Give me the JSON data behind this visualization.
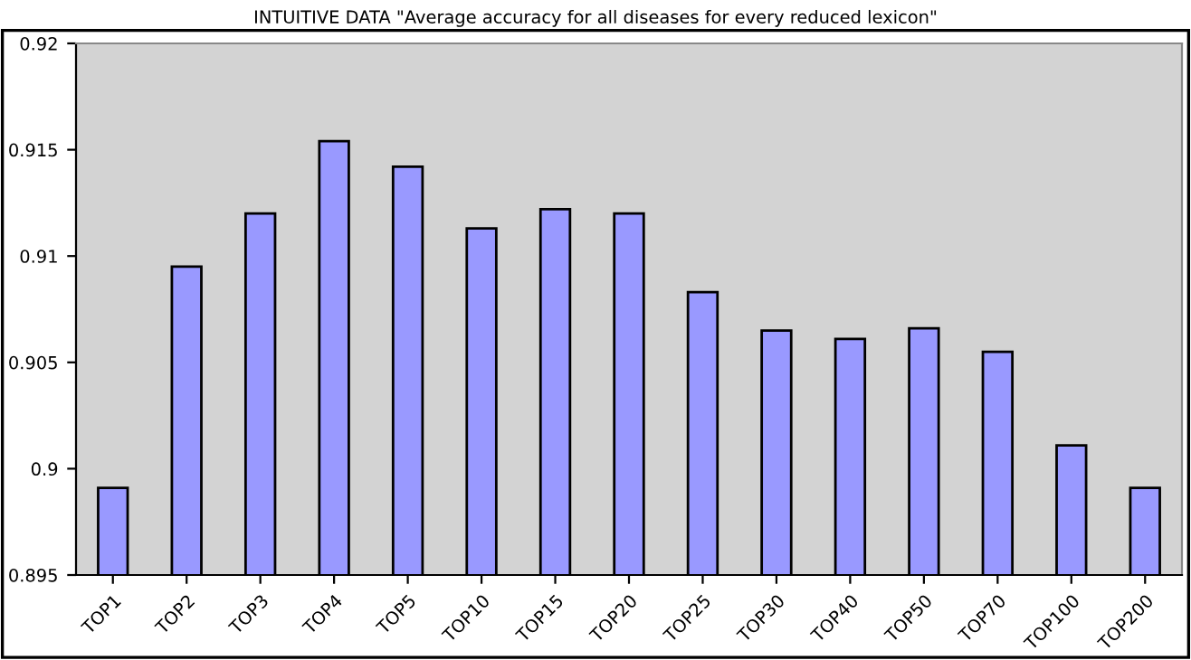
{
  "chart_data": {
    "type": "bar",
    "title": "INTUITIVE DATA \"Average accuracy for all diseases for every reduced lexicon\"",
    "categories": [
      "TOP1",
      "TOP2",
      "TOP3",
      "TOP4",
      "TOP5",
      "TOP10",
      "TOP15",
      "TOP20",
      "TOP25",
      "TOP30",
      "TOP40",
      "TOP50",
      "TOP70",
      "TOP100",
      "TOP200"
    ],
    "values": [
      0.8991,
      0.9095,
      0.912,
      0.9154,
      0.9142,
      0.9113,
      0.9122,
      0.912,
      0.9083,
      0.9065,
      0.9061,
      0.9066,
      0.9055,
      0.9011,
      0.8991
    ],
    "color": "#9999ff",
    "ylim": [
      0.895,
      0.92
    ],
    "yticks": [
      0.895,
      0.9,
      0.905,
      0.91,
      0.915,
      0.92
    ],
    "grid": false,
    "legend": false
  }
}
